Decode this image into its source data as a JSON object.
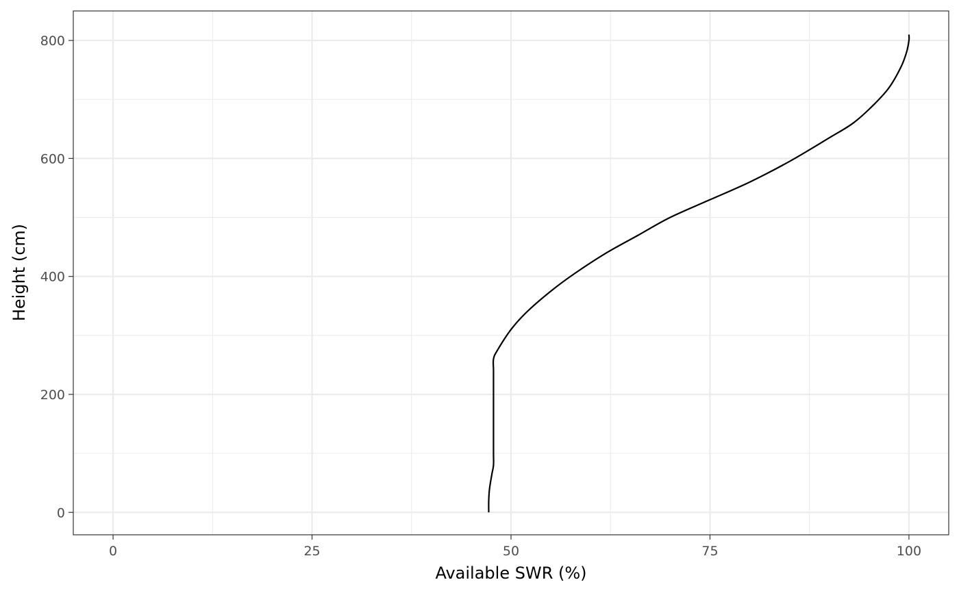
{
  "chart_data": {
    "type": "line",
    "title": "",
    "xlabel": "Available SWR (%)",
    "ylabel": "Height (cm)",
    "xlim": [
      -5,
      105
    ],
    "ylim": [
      -38,
      850
    ],
    "xticks": [
      0,
      25,
      50,
      75,
      100
    ],
    "yticks": [
      0,
      200,
      400,
      600,
      800
    ],
    "xtick_labels": [
      "0",
      "25",
      "50",
      "75",
      "100"
    ],
    "ytick_labels": [
      "0",
      "200",
      "400",
      "600",
      "800"
    ],
    "x_minor": [
      12.5,
      37.5,
      62.5,
      87.5
    ],
    "y_minor": [
      100,
      300,
      500,
      700
    ],
    "grid": true,
    "legend": "none",
    "colors": {
      "line": "#000000",
      "grid": "#ebebeb",
      "panel_border": "#333333"
    },
    "series": [
      {
        "x": [
          47.2,
          47.2,
          47.3,
          47.6,
          47.8,
          47.8,
          47.8,
          47.8,
          47.8,
          47.8,
          48.3,
          50.0,
          52.0,
          55.0,
          58.0,
          62.0,
          66.0,
          70.0,
          75.0,
          80.0,
          85.0,
          90.0,
          93.0,
          95.5,
          97.5,
          99.0,
          99.7,
          100.0,
          100.0
        ],
        "y": [
          0,
          20,
          40,
          65,
          80,
          100,
          150,
          200,
          240,
          260,
          275,
          310,
          340,
          375,
          405,
          440,
          470,
          500,
          530,
          560,
          595,
          635,
          660,
          690,
          720,
          755,
          780,
          800,
          810
        ]
      }
    ]
  }
}
